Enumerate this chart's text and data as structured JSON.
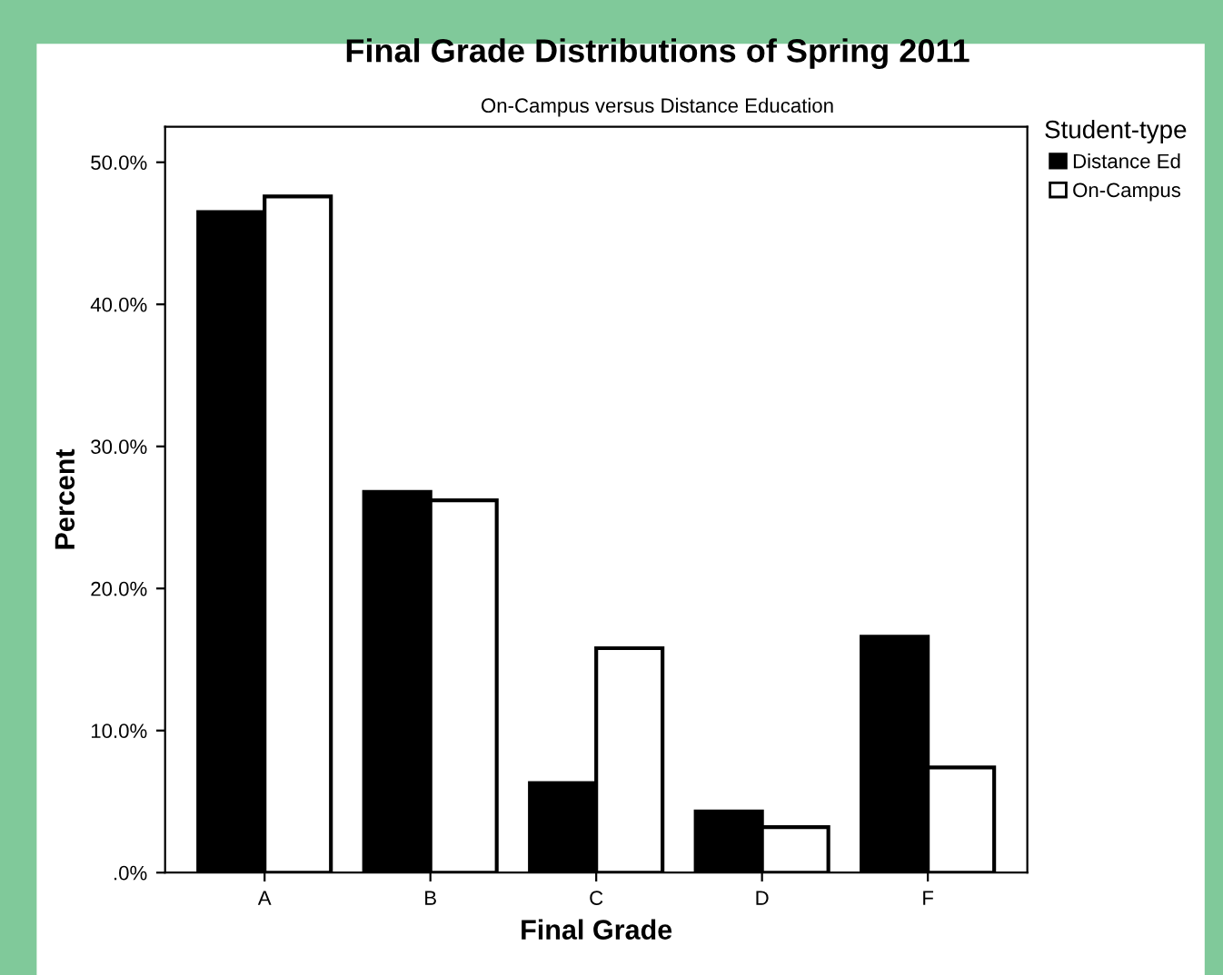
{
  "chart_data": {
    "type": "bar",
    "title": "Final Grade Distributions of Spring 2011",
    "subtitle": "On-Campus versus Distance Education",
    "xlabel": "Final Grade",
    "ylabel": "Percent",
    "legend_title": "Student-type",
    "categories": [
      "A",
      "B",
      "C",
      "D",
      "F"
    ],
    "series": [
      {
        "name": "Distance Ed",
        "color": "#000000",
        "values": [
          46.5,
          26.8,
          6.3,
          4.3,
          16.6
        ]
      },
      {
        "name": "On-Campus",
        "color": "#ffffff",
        "values": [
          47.6,
          26.2,
          15.8,
          3.2,
          7.4
        ]
      }
    ],
    "ylim": [
      0,
      52.5
    ],
    "yticks": [
      {
        "value": 0,
        "label": ".0%"
      },
      {
        "value": 10,
        "label": "10.0%"
      },
      {
        "value": 20,
        "label": "20.0%"
      },
      {
        "value": 30,
        "label": "30.0%"
      },
      {
        "value": 40,
        "label": "40.0%"
      },
      {
        "value": 50,
        "label": "50.0%"
      }
    ],
    "grid": false,
    "legend": "right"
  }
}
